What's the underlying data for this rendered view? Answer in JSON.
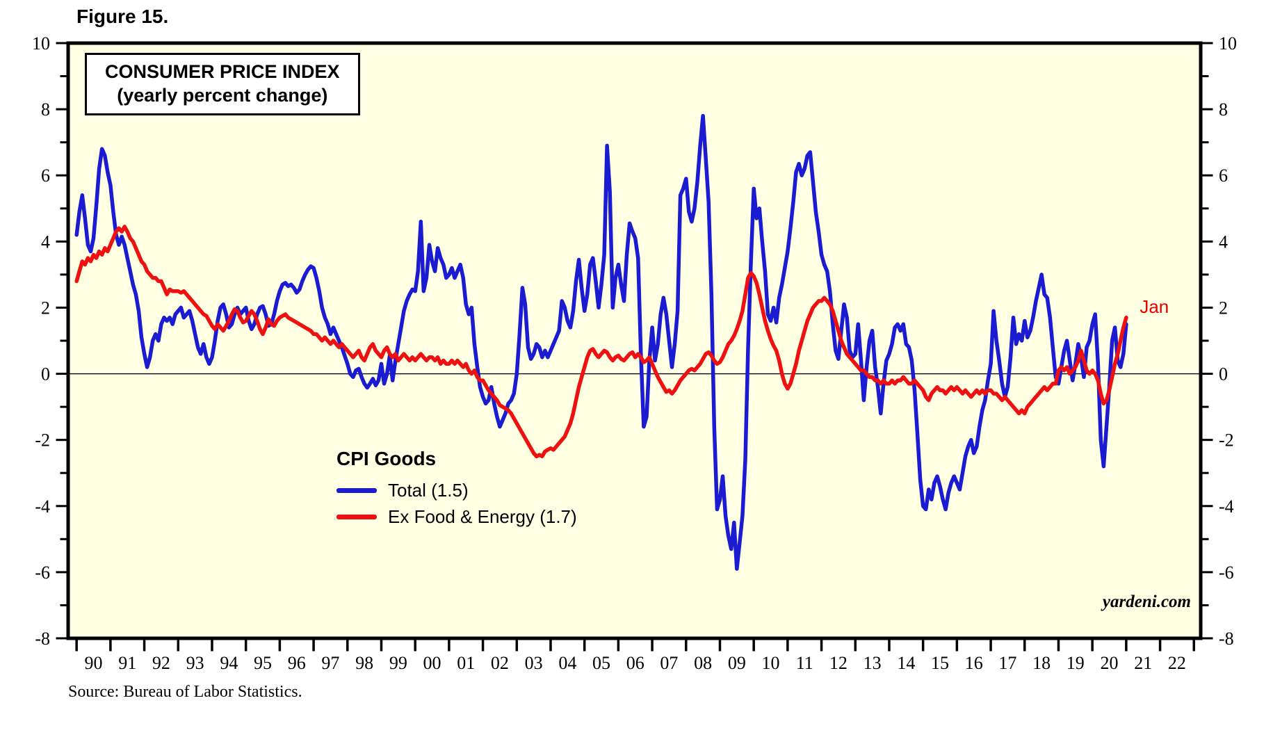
{
  "figure_label": "Figure 15.",
  "title_box": {
    "line1": "CONSUMER PRICE INDEX",
    "line2": "(yearly percent change)"
  },
  "legend": {
    "heading": "CPI Goods",
    "items": [
      {
        "label": "Total (1.5)",
        "color": "#1b1bd1"
      },
      {
        "label": "Ex Food & Energy (1.7)",
        "color": "#ee1111"
      }
    ]
  },
  "annotations": {
    "last_point_label": "Jan",
    "last_point_color": "#e60000",
    "watermark": "yardeni.com"
  },
  "source_note": "Source: Bureau of Labor Statistics.",
  "colors": {
    "plot_background": "#ffffe4",
    "axis": "#000000",
    "zero_line": "#000000"
  },
  "chart_data": {
    "type": "line",
    "title": "CONSUMER PRICE INDEX",
    "subtitle": "(yearly percent change)",
    "frequency": "monthly",
    "start": "1990-01",
    "end": "2021-01",
    "x_start": 1990.0,
    "x_step": 0.0833333,
    "xlim": [
      1989.75,
      2023.2
    ],
    "ylim": [
      -8,
      10
    ],
    "ytick_major": [
      10,
      8,
      6,
      4,
      2,
      0,
      -2,
      -4,
      -6,
      -8
    ],
    "ytick_minor_step": 1,
    "xtick_year_start": 1990,
    "xtick_labels": [
      "90",
      "91",
      "92",
      "93",
      "94",
      "95",
      "96",
      "97",
      "98",
      "99",
      "00",
      "01",
      "02",
      "03",
      "04",
      "05",
      "06",
      "07",
      "08",
      "09",
      "10",
      "11",
      "12",
      "13",
      "14",
      "15",
      "16",
      "17",
      "18",
      "19",
      "20",
      "21",
      "22"
    ],
    "grid": "zero-line-only",
    "legend_position": "inside-left-middle",
    "annotation": {
      "text": "Jan",
      "x": 2021.4,
      "y": 2.0,
      "color": "#e60000"
    },
    "series": [
      {
        "name": "Total",
        "legend_label": "Total (1.5)",
        "color": "#1b1bd1",
        "last_value": 1.5,
        "values": [
          4.2,
          4.9,
          5.4,
          4.7,
          3.9,
          3.7,
          4.1,
          5.1,
          6.2,
          6.8,
          6.6,
          6.1,
          5.7,
          4.9,
          4.2,
          3.9,
          4.15,
          3.9,
          3.5,
          3.1,
          2.7,
          2.4,
          1.9,
          1.1,
          0.6,
          0.2,
          0.5,
          1.0,
          1.2,
          1.0,
          1.5,
          1.7,
          1.6,
          1.7,
          1.5,
          1.8,
          1.9,
          2.0,
          1.7,
          1.8,
          1.9,
          1.6,
          1.2,
          0.8,
          0.6,
          0.9,
          0.5,
          0.3,
          0.5,
          1.0,
          1.6,
          2.0,
          2.1,
          1.8,
          1.4,
          1.5,
          1.8,
          2.0,
          1.8,
          1.9,
          2.0,
          1.6,
          1.35,
          1.5,
          1.8,
          2.0,
          2.05,
          1.8,
          1.45,
          1.5,
          1.8,
          2.2,
          2.5,
          2.7,
          2.75,
          2.65,
          2.7,
          2.6,
          2.45,
          2.55,
          2.8,
          3.0,
          3.15,
          3.25,
          3.2,
          2.9,
          2.5,
          2.0,
          1.7,
          1.5,
          1.2,
          1.4,
          1.2,
          1.0,
          0.8,
          0.55,
          0.3,
          0.0,
          -0.1,
          0.1,
          0.15,
          -0.1,
          -0.3,
          -0.42,
          -0.3,
          -0.15,
          -0.35,
          -0.2,
          0.3,
          -0.3,
          0.0,
          0.55,
          -0.2,
          0.4,
          0.9,
          1.4,
          1.9,
          2.2,
          2.4,
          2.55,
          2.5,
          3.1,
          4.6,
          2.5,
          2.9,
          3.9,
          3.4,
          3.1,
          3.8,
          3.5,
          3.3,
          2.9,
          3.0,
          3.2,
          2.9,
          3.1,
          3.3,
          2.9,
          2.1,
          1.8,
          2.0,
          0.9,
          0.2,
          -0.4,
          -0.7,
          -0.9,
          -0.8,
          -0.4,
          -0.9,
          -1.3,
          -1.6,
          -1.4,
          -1.2,
          -0.9,
          -0.8,
          -0.6,
          0.0,
          1.2,
          2.6,
          2.1,
          0.8,
          0.45,
          0.6,
          0.9,
          0.8,
          0.5,
          0.7,
          0.5,
          0.7,
          0.9,
          1.1,
          1.3,
          2.2,
          2.0,
          1.6,
          1.4,
          1.9,
          2.8,
          3.45,
          2.6,
          1.9,
          2.4,
          3.3,
          3.5,
          2.8,
          2.0,
          2.7,
          3.6,
          6.9,
          5.5,
          2.0,
          2.9,
          3.3,
          2.7,
          2.2,
          3.6,
          4.55,
          4.3,
          4.1,
          3.5,
          0.6,
          -1.6,
          -1.3,
          0.4,
          1.4,
          0.4,
          0.9,
          1.8,
          2.3,
          1.8,
          1.0,
          0.2,
          0.9,
          1.9,
          5.4,
          5.6,
          5.9,
          4.9,
          4.6,
          5.0,
          5.8,
          6.9,
          7.8,
          6.5,
          5.2,
          2.4,
          -1.6,
          -4.1,
          -3.8,
          -3.1,
          -4.3,
          -4.9,
          -5.3,
          -4.5,
          -5.9,
          -5.1,
          -4.3,
          -2.6,
          0.8,
          3.4,
          5.6,
          4.7,
          5.0,
          4.0,
          3.1,
          1.8,
          1.6,
          2.0,
          1.55,
          2.3,
          2.7,
          3.2,
          3.7,
          4.4,
          5.2,
          6.1,
          6.35,
          6.0,
          6.2,
          6.6,
          6.7,
          5.8,
          4.9,
          4.3,
          3.6,
          3.3,
          3.1,
          2.5,
          1.5,
          0.7,
          0.45,
          1.3,
          2.1,
          1.7,
          0.7,
          0.5,
          0.6,
          1.5,
          0.4,
          -0.8,
          0.2,
          1.0,
          1.3,
          0.2,
          -0.4,
          -1.2,
          -0.3,
          0.4,
          0.6,
          0.9,
          1.4,
          1.5,
          1.3,
          1.5,
          0.9,
          0.8,
          0.4,
          -0.5,
          -1.8,
          -3.2,
          -4.0,
          -4.1,
          -3.5,
          -3.8,
          -3.3,
          -3.1,
          -3.4,
          -3.8,
          -4.1,
          -3.6,
          -3.3,
          -3.1,
          -3.3,
          -3.5,
          -3.0,
          -2.5,
          -2.2,
          -2.0,
          -2.4,
          -2.2,
          -1.6,
          -1.1,
          -0.8,
          -0.2,
          0.3,
          1.9,
          1.0,
          0.4,
          -0.3,
          -0.7,
          -0.4,
          0.5,
          1.7,
          0.9,
          1.2,
          1.0,
          1.6,
          1.1,
          1.3,
          1.7,
          2.2,
          2.6,
          3.0,
          2.4,
          2.3,
          1.7,
          0.8,
          -0.1,
          -0.3,
          0.2,
          0.7,
          1.0,
          0.4,
          -0.2,
          0.3,
          0.9,
          0.5,
          -0.1,
          0.8,
          1.0,
          1.5,
          1.8,
          0.3,
          -2.0,
          -2.8,
          -1.6,
          -0.4,
          1.0,
          1.4,
          0.4,
          0.2,
          0.6,
          1.5
        ]
      },
      {
        "name": "Ex Food & Energy",
        "legend_label": "Ex Food & Energy (1.7)",
        "color": "#ee1111",
        "last_value": 1.7,
        "values": [
          2.8,
          3.1,
          3.4,
          3.3,
          3.5,
          3.4,
          3.6,
          3.5,
          3.7,
          3.6,
          3.8,
          3.7,
          3.9,
          4.1,
          4.3,
          4.4,
          4.3,
          4.45,
          4.3,
          4.1,
          4.0,
          3.8,
          3.6,
          3.4,
          3.3,
          3.1,
          3.0,
          2.9,
          2.9,
          2.8,
          2.8,
          2.6,
          2.4,
          2.55,
          2.5,
          2.5,
          2.5,
          2.45,
          2.5,
          2.4,
          2.3,
          2.2,
          2.1,
          2.0,
          1.9,
          1.8,
          1.75,
          1.6,
          1.45,
          1.35,
          1.5,
          1.4,
          1.3,
          1.45,
          1.6,
          1.8,
          1.95,
          1.9,
          1.7,
          1.55,
          1.6,
          1.75,
          1.9,
          1.8,
          1.6,
          1.35,
          1.2,
          1.4,
          1.65,
          1.5,
          1.45,
          1.6,
          1.7,
          1.75,
          1.8,
          1.7,
          1.65,
          1.6,
          1.55,
          1.5,
          1.45,
          1.4,
          1.35,
          1.3,
          1.2,
          1.2,
          1.1,
          1.0,
          1.1,
          1.0,
          0.9,
          1.0,
          0.9,
          0.8,
          0.9,
          0.8,
          0.7,
          0.6,
          0.5,
          0.6,
          0.7,
          0.5,
          0.4,
          0.6,
          0.8,
          0.9,
          0.7,
          0.6,
          0.5,
          0.7,
          0.8,
          0.6,
          0.5,
          0.6,
          0.4,
          0.5,
          0.6,
          0.5,
          0.4,
          0.5,
          0.4,
          0.5,
          0.6,
          0.5,
          0.4,
          0.5,
          0.5,
          0.4,
          0.5,
          0.3,
          0.4,
          0.3,
          0.3,
          0.4,
          0.3,
          0.4,
          0.3,
          0.2,
          0.3,
          0.1,
          0.0,
          0.1,
          -0.1,
          -0.2,
          -0.2,
          -0.35,
          -0.5,
          -0.6,
          -0.7,
          -0.8,
          -0.95,
          -1.0,
          -1.05,
          -1.1,
          -1.2,
          -1.35,
          -1.5,
          -1.65,
          -1.8,
          -1.95,
          -2.1,
          -2.25,
          -2.4,
          -2.5,
          -2.45,
          -2.5,
          -2.35,
          -2.3,
          -2.25,
          -2.3,
          -2.2,
          -2.1,
          -2.0,
          -1.9,
          -1.7,
          -1.5,
          -1.2,
          -0.8,
          -0.4,
          -0.1,
          0.2,
          0.5,
          0.7,
          0.75,
          0.6,
          0.5,
          0.6,
          0.7,
          0.65,
          0.5,
          0.4,
          0.5,
          0.55,
          0.45,
          0.4,
          0.5,
          0.6,
          0.65,
          0.5,
          0.6,
          0.5,
          0.35,
          0.4,
          0.5,
          0.3,
          0.1,
          -0.1,
          -0.25,
          -0.4,
          -0.55,
          -0.5,
          -0.6,
          -0.5,
          -0.35,
          -0.2,
          -0.1,
          0.0,
          0.1,
          0.15,
          0.1,
          0.2,
          0.3,
          0.45,
          0.6,
          0.65,
          0.55,
          0.4,
          0.3,
          0.35,
          0.5,
          0.7,
          0.9,
          1.0,
          1.15,
          1.35,
          1.6,
          1.9,
          2.4,
          2.9,
          3.05,
          2.95,
          2.75,
          2.4,
          2.0,
          1.6,
          1.3,
          1.05,
          0.85,
          0.7,
          0.4,
          0.0,
          -0.3,
          -0.45,
          -0.3,
          0.0,
          0.3,
          0.7,
          1.0,
          1.3,
          1.6,
          1.8,
          2.0,
          2.1,
          2.2,
          2.2,
          2.3,
          2.2,
          2.1,
          1.9,
          1.6,
          1.3,
          1.0,
          0.8,
          0.6,
          0.5,
          0.4,
          0.3,
          0.2,
          0.1,
          0.1,
          0.0,
          -0.1,
          -0.1,
          -0.2,
          -0.2,
          -0.3,
          -0.2,
          -0.3,
          -0.3,
          -0.2,
          -0.3,
          -0.2,
          -0.2,
          -0.1,
          -0.2,
          -0.3,
          -0.3,
          -0.2,
          -0.3,
          -0.4,
          -0.5,
          -0.7,
          -0.8,
          -0.6,
          -0.5,
          -0.4,
          -0.5,
          -0.5,
          -0.6,
          -0.5,
          -0.4,
          -0.5,
          -0.4,
          -0.5,
          -0.6,
          -0.5,
          -0.6,
          -0.7,
          -0.6,
          -0.5,
          -0.6,
          -0.5,
          -0.6,
          -0.5,
          -0.5,
          -0.6,
          -0.6,
          -0.7,
          -0.8,
          -0.7,
          -0.8,
          -0.9,
          -1.0,
          -1.1,
          -1.2,
          -1.1,
          -1.2,
          -1.0,
          -0.9,
          -0.8,
          -0.7,
          -0.6,
          -0.5,
          -0.4,
          -0.5,
          -0.4,
          -0.3,
          -0.3,
          0.1,
          0.2,
          0.1,
          0.2,
          0.0,
          0.1,
          0.2,
          0.4,
          0.7,
          0.4,
          0.1,
          0.0,
          0.1,
          0.0,
          -0.2,
          -0.6,
          -0.9,
          -0.8,
          -0.5,
          -0.1,
          0.3,
          0.6,
          1.0,
          1.4,
          1.7
        ]
      }
    ]
  }
}
